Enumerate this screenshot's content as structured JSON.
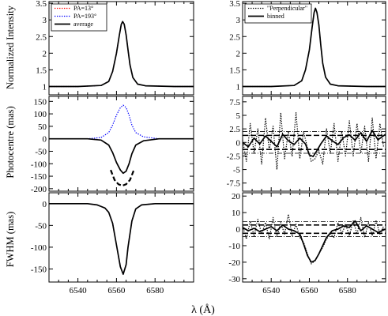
{
  "figure": {
    "xlabel": "λ (Å)",
    "xticks": [
      6540,
      6560,
      6580
    ],
    "xlim": [
      6525,
      6600
    ],
    "panel_ylabels": [
      "Normalized Intensity",
      "Photocentre (mas)",
      "FWHM (mas)"
    ]
  },
  "chart_data": [
    {
      "id": "left-intensity",
      "type": "line",
      "title": "",
      "xlabel": "",
      "ylabel": "Normalized Intensity",
      "xlim": [
        6525,
        6600
      ],
      "ylim": [
        0.75,
        3.55
      ],
      "yticks": [
        "1",
        "1.5",
        "2",
        "2.5",
        "3",
        "3.5"
      ],
      "legend": {
        "position": "top-left",
        "entries": [
          "PA=13°",
          "PA=193°",
          "average"
        ]
      },
      "series": [
        {
          "name": "PA=13°",
          "color": "#ff0000",
          "dash": "dotted",
          "x": [
            6525,
            6540,
            6552,
            6556,
            6558,
            6560,
            6561.5,
            6562.5,
            6563.2,
            6564,
            6565,
            6566,
            6567,
            6568.5,
            6571,
            6575,
            6590,
            6600
          ],
          "y": [
            1.0,
            1.0,
            1.03,
            1.15,
            1.45,
            2.0,
            2.55,
            2.87,
            2.95,
            2.87,
            2.55,
            2.1,
            1.65,
            1.27,
            1.07,
            1.02,
            1.0,
            1.0
          ]
        },
        {
          "name": "PA=193°",
          "color": "#0000ff",
          "dash": "dotted",
          "x": [
            6525,
            6540,
            6552,
            6556,
            6558,
            6560,
            6561.5,
            6562.5,
            6563.2,
            6564,
            6565,
            6566,
            6567,
            6568.5,
            6571,
            6575,
            6590,
            6600
          ],
          "y": [
            1.0,
            1.0,
            1.03,
            1.15,
            1.45,
            2.0,
            2.55,
            2.87,
            2.95,
            2.87,
            2.55,
            2.1,
            1.65,
            1.27,
            1.07,
            1.02,
            1.0,
            1.0
          ]
        },
        {
          "name": "average",
          "color": "#000000",
          "dash": "solid",
          "x": [
            6525,
            6540,
            6552,
            6556,
            6558,
            6560,
            6561.5,
            6562.5,
            6563.2,
            6564,
            6565,
            6566,
            6567,
            6568.5,
            6571,
            6575,
            6590,
            6600
          ],
          "y": [
            1.0,
            1.0,
            1.03,
            1.15,
            1.45,
            2.0,
            2.55,
            2.87,
            2.95,
            2.87,
            2.55,
            2.1,
            1.65,
            1.27,
            1.07,
            1.02,
            1.0,
            1.0
          ]
        }
      ]
    },
    {
      "id": "right-intensity",
      "type": "line",
      "title": "",
      "xlabel": "",
      "ylabel": "",
      "xlim": [
        6525,
        6600
      ],
      "ylim": [
        0.75,
        3.55
      ],
      "yticks": [
        "1",
        "1.5",
        "2",
        "2.5",
        "3",
        "3.5"
      ],
      "legend": {
        "position": "top-left",
        "entries": [
          "\"Perpendicular\"",
          "binned"
        ]
      },
      "series": [
        {
          "name": "\"Perpendicular\"",
          "color": "#000000",
          "dash": "dotted",
          "x": [
            6525,
            6540,
            6552,
            6556,
            6558,
            6560,
            6561.5,
            6562.5,
            6563.2,
            6564,
            6565,
            6566,
            6567,
            6568.5,
            6571,
            6575,
            6590,
            6600
          ],
          "y": [
            1.0,
            1.0,
            1.03,
            1.17,
            1.5,
            2.1,
            2.8,
            3.22,
            3.35,
            3.22,
            2.85,
            2.25,
            1.7,
            1.28,
            1.07,
            1.02,
            1.0,
            1.0
          ]
        },
        {
          "name": "binned",
          "color": "#000000",
          "dash": "solid",
          "x": [
            6525,
            6540,
            6552,
            6556,
            6558,
            6560,
            6561.5,
            6562.5,
            6563.2,
            6564,
            6565,
            6566,
            6567,
            6568.5,
            6571,
            6575,
            6590,
            6600
          ],
          "y": [
            1.0,
            1.0,
            1.03,
            1.17,
            1.5,
            2.1,
            2.8,
            3.22,
            3.35,
            3.22,
            2.85,
            2.25,
            1.7,
            1.28,
            1.07,
            1.02,
            1.0,
            1.0
          ]
        }
      ]
    },
    {
      "id": "left-photocentre",
      "type": "line",
      "title": "",
      "xlabel": "",
      "ylabel": "Photocentre (mas)",
      "xlim": [
        6525,
        6600
      ],
      "ylim": [
        -210,
        170
      ],
      "yticks": [
        "-200",
        "-150",
        "-100",
        "-50",
        "0",
        "50",
        "100",
        "150"
      ],
      "series": [
        {
          "name": "PA=13°",
          "color": "#ff0000",
          "dash": "dotted",
          "x": [
            6525,
            6545,
            6552,
            6556,
            6558,
            6560,
            6562,
            6563.5,
            6565,
            6566.5,
            6568,
            6570,
            6574,
            6582,
            6600
          ],
          "y": [
            0,
            0,
            -5,
            -25,
            -55,
            -95,
            -125,
            -138,
            -130,
            -100,
            -60,
            -25,
            -8,
            0,
            0
          ]
        },
        {
          "name": "PA=193°",
          "color": "#0000ff",
          "dash": "dotted",
          "x": [
            6525,
            6545,
            6552,
            6556,
            6558,
            6560,
            6562,
            6563.5,
            6565,
            6566.5,
            6568,
            6570,
            6574,
            6582,
            6600
          ],
          "y": [
            0,
            0,
            5,
            25,
            55,
            95,
            125,
            135,
            125,
            95,
            55,
            25,
            8,
            0,
            0
          ]
        },
        {
          "name": "average",
          "color": "#000000",
          "dash": "solid",
          "x": [
            6525,
            6545,
            6552,
            6556,
            6558,
            6560,
            6562,
            6563.5,
            6565,
            6566.5,
            6568,
            6570,
            6574,
            6582,
            6600
          ],
          "y": [
            0,
            0,
            -5,
            -25,
            -55,
            -95,
            -125,
            -138,
            -130,
            -100,
            -60,
            -25,
            -8,
            0,
            0
          ]
        },
        {
          "name": "",
          "color": "#000000",
          "dash": "long-dash",
          "x": [
            6557,
            6559,
            6561,
            6563,
            6565,
            6567,
            6569
          ],
          "y": [
            -125,
            -165,
            -182,
            -188,
            -182,
            -165,
            -125
          ]
        }
      ]
    },
    {
      "id": "right-photocentre",
      "type": "line",
      "title": "",
      "xlabel": "",
      "ylabel": "",
      "xlim": [
        6525,
        6600
      ],
      "ylim": [
        -9,
        8.5
      ],
      "yticks": [
        "-7.5",
        "-5",
        "-2.5",
        "0",
        "2.5",
        "5",
        "7.5"
      ],
      "reference_lines": {
        "dashed": [
          1.3,
          -1.3
        ],
        "dash_dot": [
          2.0,
          -2.0
        ]
      },
      "series": [
        {
          "name": "\"Perpendicular\"",
          "color": "#000000",
          "dash": "dotted",
          "x": [
            6525,
            6527,
            6529,
            6531,
            6533,
            6535,
            6537,
            6539,
            6541,
            6543,
            6545,
            6547,
            6549,
            6551,
            6553,
            6555,
            6557,
            6559,
            6561,
            6563,
            6565,
            6567,
            6569,
            6571,
            6573,
            6575,
            6577,
            6579,
            6581,
            6583,
            6585,
            6587,
            6589,
            6591,
            6593,
            6595,
            6597,
            6599
          ],
          "y": [
            0.5,
            -3.5,
            3.5,
            -2.0,
            2.5,
            -4.0,
            4.5,
            -1.5,
            3.0,
            -5.0,
            5.5,
            -3.0,
            2.0,
            -2.5,
            5.5,
            -3.0,
            2.0,
            -1.0,
            -3.5,
            -3.0,
            -1.5,
            -4.0,
            2.5,
            -2.0,
            3.5,
            -3.5,
            2.0,
            -2.5,
            4.0,
            -2.5,
            3.5,
            -2.0,
            3.0,
            -3.5,
            4.5,
            -3.0,
            3.5,
            -1.0
          ]
        },
        {
          "name": "binned",
          "color": "#000000",
          "dash": "solid",
          "x": [
            6525,
            6528,
            6531,
            6534,
            6537,
            6540,
            6543,
            6546,
            6549,
            6552,
            6555,
            6558,
            6560,
            6562,
            6564,
            6566,
            6569,
            6572,
            6575,
            6578,
            6581,
            6584,
            6587,
            6590,
            6593,
            6596,
            6600
          ],
          "y": [
            0.0,
            -0.8,
            0.8,
            -0.3,
            1.2,
            0.2,
            -0.8,
            1.5,
            0.3,
            -0.4,
            0.8,
            -0.3,
            -2.3,
            -2.6,
            -1.5,
            -0.3,
            1.2,
            0.3,
            -0.4,
            0.9,
            1.4,
            0.4,
            1.8,
            0.2,
            2.2,
            0.5,
            1.5
          ]
        }
      ]
    },
    {
      "id": "left-fwhm",
      "type": "line",
      "title": "",
      "xlabel": "λ (Å)",
      "ylabel": "FWHM (mas)",
      "xlim": [
        6525,
        6600
      ],
      "ylim": [
        -180,
        25
      ],
      "yticks": [
        "-150",
        "-100",
        "-50",
        "0"
      ],
      "series": [
        {
          "name": "PA=13°",
          "color": "#ff0000",
          "dash": "dotted",
          "x": [
            6525,
            6545,
            6550,
            6554,
            6556,
            6558,
            6560,
            6562,
            6563.5,
            6565,
            6566,
            6568,
            6570,
            6573,
            6580,
            6600
          ],
          "y": [
            0,
            0,
            -3,
            -10,
            -20,
            -45,
            -95,
            -145,
            -162,
            -140,
            -100,
            -40,
            -12,
            -3,
            0,
            0
          ]
        },
        {
          "name": "PA=193°",
          "color": "#0000ff",
          "dash": "dotted",
          "x": [
            6525,
            6545,
            6550,
            6554,
            6556,
            6558,
            6560,
            6562,
            6563.5,
            6565,
            6566,
            6568,
            6570,
            6573,
            6580,
            6600
          ],
          "y": [
            0,
            0,
            -3,
            -10,
            -20,
            -45,
            -95,
            -145,
            -162,
            -140,
            -100,
            -40,
            -12,
            -3,
            0,
            0
          ]
        },
        {
          "name": "average",
          "color": "#000000",
          "dash": "solid",
          "x": [
            6525,
            6545,
            6550,
            6554,
            6556,
            6558,
            6560,
            6562,
            6563.5,
            6565,
            6566,
            6568,
            6570,
            6573,
            6580,
            6600
          ],
          "y": [
            0,
            0,
            -3,
            -10,
            -20,
            -45,
            -95,
            -145,
            -162,
            -140,
            -100,
            -40,
            -12,
            -3,
            0,
            0
          ]
        }
      ]
    },
    {
      "id": "right-fwhm",
      "type": "line",
      "title": "",
      "xlabel": "λ (Å)",
      "ylabel": "",
      "xlim": [
        6525,
        6600
      ],
      "ylim": [
        -32,
        22
      ],
      "yticks": [
        "-30",
        "-20",
        "-10",
        "0",
        "10",
        "20"
      ],
      "reference_lines": {
        "dashed": [
          2.5,
          -2.5
        ],
        "dash_dot": [
          4.5,
          -4.5
        ]
      },
      "series": [
        {
          "name": "\"Perpendicular\"",
          "color": "#000000",
          "dash": "dotted",
          "x": [
            6525,
            6527,
            6529,
            6531,
            6533,
            6535,
            6537,
            6539,
            6541,
            6543,
            6545,
            6547,
            6549,
            6551,
            6553,
            6555,
            6557,
            6559,
            6561,
            6563,
            6565,
            6567,
            6569,
            6571,
            6573,
            6575,
            6577,
            6579,
            6581,
            6583,
            6585,
            6587,
            6589,
            6591,
            6593,
            6595,
            6597,
            6599
          ],
          "y": [
            2,
            -6,
            5,
            -4,
            6,
            -3,
            4,
            -6,
            7,
            -5,
            4,
            -3,
            9,
            -4,
            3,
            -5,
            -8,
            -15,
            -21,
            -19,
            -15,
            -11,
            -6,
            -3,
            -5,
            4,
            -3,
            3,
            -4,
            5,
            -3,
            7,
            -5,
            4,
            -4,
            5,
            -3,
            2
          ]
        },
        {
          "name": "binned",
          "color": "#000000",
          "dash": "solid",
          "x": [
            6525,
            6528,
            6531,
            6534,
            6537,
            6540,
            6543,
            6546,
            6549,
            6552,
            6555,
            6557,
            6559,
            6561,
            6563,
            6565,
            6567,
            6569,
            6572,
            6575,
            6578,
            6581,
            6584,
            6587,
            6590,
            6593,
            6596,
            6600
          ],
          "y": [
            1,
            -1,
            0.5,
            -1.5,
            0,
            1.5,
            -1,
            2.5,
            0,
            -1,
            -3,
            -9,
            -16,
            -20,
            -19,
            -15,
            -10,
            -5,
            -1,
            0,
            2,
            1,
            5,
            -1,
            2,
            0,
            -2,
            0
          ]
        }
      ]
    }
  ]
}
